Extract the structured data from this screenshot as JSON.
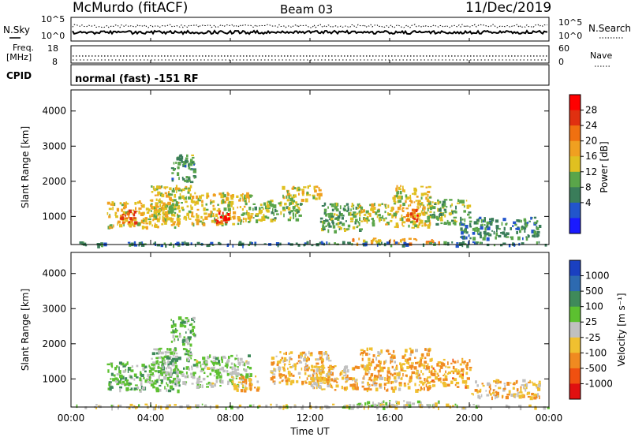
{
  "header": {
    "station": "McMurdo (fitACF)",
    "beam": "Beam 03",
    "date": "11/Dec/2019"
  },
  "noise_panel": {
    "left_label": "N.Sky",
    "right_label": "N.Search",
    "top_tick": "10^5",
    "bottom_tick": "10^0"
  },
  "freq_panel": {
    "left_label_line1": "Freq.",
    "left_label_line2": "[MHz]",
    "left_top_tick": "18",
    "left_bottom_tick": "8",
    "right_label": "Nave",
    "right_top_tick": "60",
    "right_bottom_tick": "0"
  },
  "cpid_panel": {
    "label": "CPID",
    "text": "normal (fast) -151 RF"
  },
  "axes": {
    "ylabel": "Slant Range [km]",
    "yticks": [
      "1000",
      "2000",
      "3000",
      "4000"
    ],
    "xlabel": "Time UT",
    "xticks": [
      "00:00",
      "04:00",
      "08:00",
      "12:00",
      "16:00",
      "20:00",
      "00:00"
    ]
  },
  "power_colorbar": {
    "label": "Power [dB]",
    "ticks": [
      "4",
      "8",
      "12",
      "16",
      "20",
      "24",
      "28"
    ],
    "colors": [
      "#1a1aff",
      "#2255cc",
      "#3a7d5a",
      "#5aa54a",
      "#e0c020",
      "#f0a020",
      "#f07010",
      "#e03010",
      "#ff0000"
    ]
  },
  "velocity_colorbar": {
    "label": "Velocity [m s⁻¹]",
    "ticks": [
      "1000",
      "500",
      "100",
      "25",
      "-25",
      "-100",
      "-500",
      "-1000"
    ],
    "colors": [
      "#1a40c0",
      "#2d6ab0",
      "#3f8a5a",
      "#5cc030",
      "#c0c0c0",
      "#f0c030",
      "#f08a20",
      "#f05010",
      "#e01010"
    ]
  },
  "chart_data": [
    {
      "type": "heatmap",
      "title": "Power",
      "xlabel": "Time UT",
      "ylabel": "Slant Range [km]",
      "xlim": [
        0,
        24
      ],
      "ylim": [
        200,
        4600
      ],
      "colorbar_range": [
        0,
        30
      ],
      "regions": [
        {
          "t0": 1.8,
          "t1": 5.4,
          "r0": 700,
          "r1": 1500,
          "value": 16
        },
        {
          "t0": 2.4,
          "t1": 3.2,
          "r0": 850,
          "r1": 1200,
          "value": 24
        },
        {
          "t0": 4.0,
          "t1": 6.0,
          "r0": 900,
          "r1": 1900,
          "value": 14
        },
        {
          "t0": 5.0,
          "t1": 6.2,
          "r0": 2000,
          "r1": 2800,
          "value": 10
        },
        {
          "t0": 6.0,
          "t1": 9.0,
          "r0": 800,
          "r1": 1700,
          "value": 15
        },
        {
          "t0": 7.2,
          "t1": 8.0,
          "r0": 850,
          "r1": 1200,
          "value": 26
        },
        {
          "t0": 9.0,
          "t1": 11.5,
          "r0": 900,
          "r1": 1500,
          "value": 13
        },
        {
          "t0": 10.5,
          "t1": 12.5,
          "r0": 1500,
          "r1": 1900,
          "value": 15
        },
        {
          "t0": 12.5,
          "t1": 14.5,
          "r0": 600,
          "r1": 1400,
          "value": 11
        },
        {
          "t0": 14.0,
          "t1": 16.0,
          "r0": 800,
          "r1": 1400,
          "value": 14
        },
        {
          "t0": 16.0,
          "t1": 18.0,
          "r0": 700,
          "r1": 1900,
          "value": 16
        },
        {
          "t0": 16.8,
          "t1": 17.4,
          "r0": 900,
          "r1": 1300,
          "value": 25
        },
        {
          "t0": 18.0,
          "t1": 20.0,
          "r0": 800,
          "r1": 1500,
          "value": 12
        },
        {
          "t0": 19.5,
          "t1": 23.5,
          "r0": 400,
          "r1": 1000,
          "value": 9
        },
        {
          "t0": 14.0,
          "t1": 18.5,
          "r0": 250,
          "r1": 400,
          "value": 19
        },
        {
          "t0": 0.0,
          "t1": 24.0,
          "r0": 200,
          "r1": 300,
          "value": 8
        }
      ]
    },
    {
      "type": "heatmap",
      "title": "Velocity",
      "xlabel": "Time UT",
      "ylabel": "Slant Range [km]",
      "xlim": [
        0,
        24
      ],
      "ylim": [
        200,
        4600
      ],
      "colorbar_range": [
        -1000,
        1000
      ],
      "regions": [
        {
          "t0": 1.8,
          "t1": 5.4,
          "r0": 700,
          "r1": 1500,
          "value": 200
        },
        {
          "t0": 4.0,
          "t1": 6.0,
          "r0": 900,
          "r1": 1900,
          "value": 150
        },
        {
          "t0": 5.0,
          "t1": 6.2,
          "r0": 2000,
          "r1": 2800,
          "value": 250
        },
        {
          "t0": 6.0,
          "t1": 9.0,
          "r0": 800,
          "r1": 1700,
          "value": 120
        },
        {
          "t0": 8.0,
          "t1": 9.5,
          "r0": 700,
          "r1": 1100,
          "value": -300
        },
        {
          "t0": 10.0,
          "t1": 13.0,
          "r0": 900,
          "r1": 1800,
          "value": -250
        },
        {
          "t0": 12.0,
          "t1": 14.5,
          "r0": 700,
          "r1": 1400,
          "value": -200
        },
        {
          "t0": 14.5,
          "t1": 18.0,
          "r0": 700,
          "r1": 1900,
          "value": -300
        },
        {
          "t0": 18.0,
          "t1": 20.0,
          "r0": 800,
          "r1": 1600,
          "value": -350
        },
        {
          "t0": 20.0,
          "t1": 23.5,
          "r0": 500,
          "r1": 1000,
          "value": -200
        },
        {
          "t0": 14.0,
          "t1": 18.5,
          "r0": 250,
          "r1": 400,
          "value": 60
        },
        {
          "t0": 0.0,
          "t1": 24.0,
          "r0": 200,
          "r1": 300,
          "value": -60
        }
      ]
    }
  ]
}
